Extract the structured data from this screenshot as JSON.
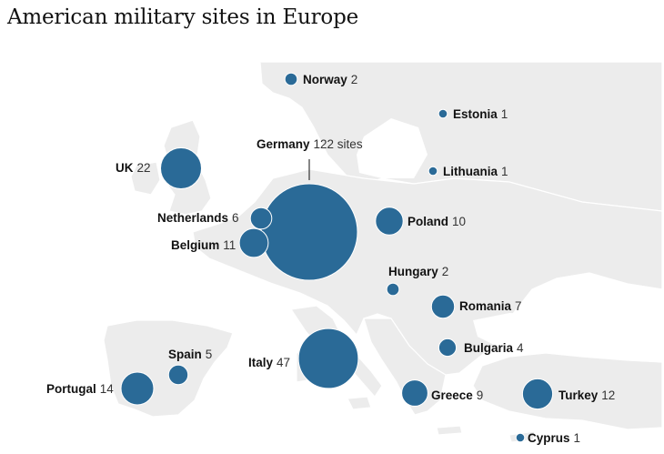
{
  "title": "American military sites in Europe",
  "colors": {
    "bubble": "#2a6a97",
    "land": "#ececec",
    "sea": "#ffffff",
    "border": "#ffffff"
  },
  "chart_data": {
    "type": "bubble-map",
    "title": "American military sites in Europe",
    "points": [
      {
        "country": "Norway",
        "value": 2,
        "label": "2"
      },
      {
        "country": "Estonia",
        "value": 1,
        "label": "1"
      },
      {
        "country": "Lithuania",
        "value": 1,
        "label": "1"
      },
      {
        "country": "UK",
        "value": 22,
        "label": "22"
      },
      {
        "country": "Germany",
        "value": 122,
        "label": "122 sites"
      },
      {
        "country": "Netherlands",
        "value": 6,
        "label": "6"
      },
      {
        "country": "Belgium",
        "value": 11,
        "label": "11"
      },
      {
        "country": "Poland",
        "value": 10,
        "label": "10"
      },
      {
        "country": "Hungary",
        "value": 2,
        "label": "2"
      },
      {
        "country": "Romania",
        "value": 7,
        "label": "7"
      },
      {
        "country": "Bulgaria",
        "value": 4,
        "label": "4"
      },
      {
        "country": "Spain",
        "value": 5,
        "label": "5"
      },
      {
        "country": "Italy",
        "value": 47,
        "label": "47"
      },
      {
        "country": "Portugal",
        "value": 14,
        "label": "14"
      },
      {
        "country": "Greece",
        "value": 9,
        "label": "9"
      },
      {
        "country": "Turkey",
        "value": 12,
        "label": "12"
      },
      {
        "country": "Cyprus",
        "value": 1,
        "label": "1"
      }
    ]
  }
}
